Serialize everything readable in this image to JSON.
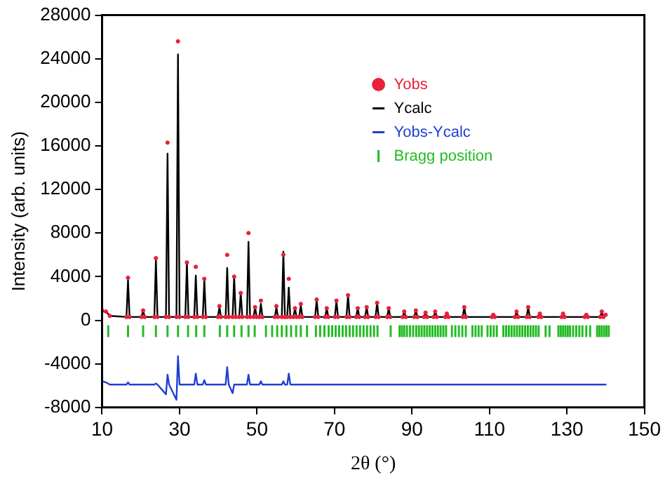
{
  "chart_data": {
    "type": "line",
    "xlabel": "2θ (°)",
    "ylabel": "Intensity (arb. units)",
    "xlim": [
      10,
      150
    ],
    "xticks": [
      10,
      30,
      50,
      70,
      90,
      110,
      130,
      150
    ],
    "ylim": [
      -8000,
      28000
    ],
    "yticks": [
      -8000,
      -4000,
      0,
      4000,
      8000,
      12000,
      16000,
      20000,
      24000,
      28000
    ],
    "grid": false,
    "legend": "top right",
    "x": [
      10,
      11,
      12,
      16.3,
      16.7,
      17.1,
      20.2,
      20.6,
      21,
      23.5,
      23.9,
      24.3,
      26.5,
      26.9,
      27.3,
      29.2,
      29.6,
      30,
      31.5,
      31.9,
      32.3,
      33.8,
      34.2,
      34.6,
      36,
      36.4,
      36.8,
      39.9,
      40.3,
      40.7,
      41.9,
      42.3,
      42.7,
      43.7,
      44.1,
      44.5,
      45.4,
      45.8,
      46.2,
      47.4,
      47.8,
      48.2,
      49.1,
      49.5,
      49.9,
      50.6,
      51,
      51.4,
      54.6,
      55,
      55.4,
      56.4,
      56.8,
      57.2,
      57.8,
      58.2,
      58.6,
      59.4,
      59.8,
      60.2,
      60.9,
      61.3,
      61.7,
      65,
      65.4,
      65.8,
      67.6,
      68,
      68.4,
      70.1,
      70.5,
      70.9,
      73.1,
      73.5,
      73.9,
      75.6,
      76,
      76.4,
      77.9,
      78.3,
      78.7,
      80.6,
      81,
      81.4,
      83.6,
      84,
      84.4,
      87.6,
      88,
      88.4,
      90.6,
      91,
      91.4,
      93.1,
      93.5,
      93.9,
      95.6,
      96,
      96.4,
      98.6,
      99,
      99.4,
      103.1,
      103.5,
      103.9,
      110.6,
      111,
      111.4,
      116.6,
      117,
      117.4,
      119.6,
      120,
      120.4,
      122.6,
      123,
      123.4,
      128.6,
      129,
      129.4,
      134.6,
      135,
      135.4,
      138.6,
      139,
      139.4,
      140
    ],
    "series": [
      {
        "name": "Yobs",
        "type": "scatter",
        "marker": "circle",
        "color": "#e8213a",
        "values": [
          900,
          800,
          400,
          300,
          3900,
          300,
          300,
          900,
          300,
          300,
          5700,
          300,
          300,
          16300,
          300,
          300,
          25600,
          300,
          300,
          5300,
          300,
          300,
          4900,
          300,
          300,
          3800,
          300,
          300,
          1300,
          300,
          300,
          6000,
          300,
          300,
          4000,
          300,
          300,
          2500,
          300,
          300,
          8000,
          300,
          300,
          1200,
          300,
          300,
          1800,
          300,
          300,
          1300,
          300,
          300,
          6000,
          300,
          300,
          3800,
          300,
          300,
          1100,
          300,
          300,
          1500,
          300,
          300,
          1900,
          300,
          300,
          1100,
          300,
          300,
          1800,
          300,
          300,
          2300,
          300,
          300,
          1100,
          300,
          300,
          1200,
          300,
          300,
          1600,
          300,
          300,
          1100,
          300,
          300,
          800,
          300,
          300,
          900,
          300,
          300,
          700,
          300,
          300,
          800,
          300,
          300,
          600,
          300,
          300,
          1200,
          300,
          300,
          500,
          300,
          300,
          800,
          300,
          300,
          1200,
          300,
          300,
          600,
          300,
          300,
          600,
          300,
          300,
          500,
          300,
          300,
          800,
          300,
          500
        ]
      },
      {
        "name": "Ycalc",
        "marker": "none",
        "color": "#000000",
        "values": [
          800,
          800,
          400,
          300,
          3700,
          300,
          300,
          900,
          300,
          300,
          5600,
          300,
          300,
          15300,
          300,
          300,
          24400,
          300,
          300,
          5300,
          300,
          300,
          4100,
          300,
          300,
          3700,
          300,
          300,
          1200,
          300,
          300,
          4800,
          300,
          300,
          4000,
          300,
          300,
          2500,
          300,
          300,
          7200,
          300,
          300,
          1200,
          300,
          300,
          1500,
          300,
          300,
          1200,
          300,
          300,
          6300,
          300,
          300,
          3000,
          300,
          300,
          1100,
          300,
          300,
          1400,
          300,
          300,
          1900,
          300,
          300,
          1100,
          300,
          300,
          1800,
          300,
          300,
          2300,
          300,
          300,
          1100,
          300,
          300,
          1200,
          300,
          300,
          1600,
          300,
          300,
          1100,
          300,
          300,
          800,
          300,
          300,
          900,
          300,
          300,
          700,
          300,
          300,
          800,
          300,
          300,
          600,
          300,
          300,
          1200,
          300,
          300,
          500,
          300,
          300,
          800,
          300,
          300,
          1200,
          300,
          300,
          600,
          300,
          300,
          600,
          300,
          300,
          500,
          300,
          300,
          800,
          300,
          500
        ]
      },
      {
        "name": "Yobs-Ycalc",
        "type": "line",
        "marker": "none",
        "color": "#1f3fd0",
        "values": [
          -5600,
          -5700,
          -5900,
          -5900,
          -5700,
          -5900,
          -5900,
          -5900,
          -5900,
          -5900,
          -5800,
          -5900,
          -6800,
          -5000,
          -5900,
          -7300,
          -3300,
          -5900,
          -5900,
          -5900,
          -5900,
          -5900,
          -4900,
          -5900,
          -5900,
          -5500,
          -5900,
          -5900,
          -5900,
          -5900,
          -5900,
          -4300,
          -5900,
          -6700,
          -5900,
          -5900,
          -5900,
          -5900,
          -5900,
          -5900,
          -5000,
          -5900,
          -5900,
          -5900,
          -5900,
          -5900,
          -5600,
          -5900,
          -5900,
          -5900,
          -5900,
          -5900,
          -5600,
          -5900,
          -5900,
          -4900,
          -5900,
          -5900,
          -5900,
          -5900,
          -5900,
          -5900,
          -5900,
          -5900,
          -5900,
          -5900,
          -5900,
          -5900,
          -5900,
          -5900,
          -5900,
          -5900,
          -5900,
          -5900,
          -5900,
          -5900,
          -5900,
          -5900,
          -5900,
          -5900,
          -5900,
          -5900,
          -5900,
          -5900,
          -5900,
          -5900,
          -5900,
          -5900,
          -5900,
          -5900,
          -5900,
          -5900,
          -5900,
          -5900,
          -5900,
          -5900,
          -5900,
          -5900,
          -5900,
          -5900,
          -5900,
          -5900,
          -5900,
          -5900,
          -5900,
          -5900,
          -5900,
          -5900,
          -5900,
          -5900,
          -5900,
          -5900,
          -5900,
          -5900,
          -5900,
          -5900,
          -5900,
          -5900,
          -5900,
          -5900,
          -5900,
          -5900,
          -5900,
          -5900,
          -5900,
          -5900,
          -5900
        ]
      },
      {
        "name": "Bragg position",
        "type": "bar",
        "color": "#22bb22",
        "base": [
          -1500,
          -1500,
          -1500,
          -1500,
          -1500,
          -1500,
          -1500,
          -1500,
          -1500,
          -1500,
          -1500,
          -1500,
          -1500,
          -1500,
          -1500,
          -1500,
          -1500,
          -1500,
          -1500,
          -1500,
          -1500,
          -1500,
          -1500,
          -1500,
          -1500,
          -1500,
          -1500,
          -1500,
          -1500,
          -1500,
          -1500,
          -1500,
          -1500,
          -1500,
          -1500,
          -1500,
          -1500,
          -1500,
          -1500,
          -1500,
          -1500,
          -1500,
          -1500,
          -1500,
          -1500,
          -1500,
          -1500,
          -1500,
          -1500,
          -1500,
          -1500,
          -1500,
          -1500,
          -1500,
          -1500,
          -1500,
          -1500,
          -1500,
          -1500,
          -1500,
          -1500,
          -1500,
          -1500,
          -1500,
          -1500,
          -1500,
          -1500,
          -1500,
          -1500,
          -1500,
          -1500,
          -1500,
          -1500,
          -1500,
          -1500,
          -1500,
          -1500,
          -1500,
          -1500,
          -1500,
          -1500,
          -1500,
          -1500,
          -1500,
          -1500,
          -1500,
          -1500,
          -1500,
          -1500,
          -1500,
          -1500,
          -1500,
          -1500,
          -1500,
          -1500,
          -1500,
          -1500,
          -1500,
          -1500,
          -1500,
          -1500,
          -1500,
          -1500,
          -1500,
          -1500,
          -1500,
          -1500,
          -1500
        ],
        "x": [
          11.6,
          16.7,
          20.6,
          23.9,
          26.9,
          29.6,
          32.2,
          34.3,
          36.4,
          40.4,
          42.3,
          44.1,
          46,
          47.8,
          49.4,
          52.3,
          53.9,
          55.2,
          56.4,
          57.6,
          58.8,
          60.1,
          61.3,
          62.9,
          65.2,
          66.3,
          67.4,
          68.5,
          69.4,
          70.3,
          71.2,
          72.1,
          73,
          73.9,
          74.8,
          75.7,
          76.6,
          77.5,
          78.4,
          79.3,
          80.2,
          81.1,
          84.5,
          86.8,
          87.4,
          88,
          88.7,
          89.5,
          90.3,
          91.1,
          91.8,
          92.5,
          93.2,
          93.9,
          94.6,
          95.3,
          96,
          96.7,
          97.4,
          98.1,
          98.8,
          100.3,
          101.2,
          102.1,
          103,
          103.9,
          105.6,
          106.4,
          107.2,
          108,
          109.5,
          110.3,
          111.1,
          111.9,
          113.6,
          114.3,
          115,
          115.7,
          116.4,
          117.1,
          117.8,
          118.5,
          119.2,
          119.9,
          120.6,
          121.3,
          122,
          122.7,
          124.5,
          125.5,
          127.8,
          128.4,
          129,
          129.6,
          130.2,
          130.8,
          131.6,
          132.4,
          133.2,
          134,
          135,
          136,
          137.8,
          138.4,
          139,
          139.6,
          140.2,
          140.8
        ],
        "values": [
          1000,
          1000,
          1000,
          1000,
          1000,
          1000,
          1000,
          1000,
          1000,
          1000,
          1000,
          1000,
          1000,
          1000,
          1000,
          1000,
          1000,
          1000,
          1000,
          1000,
          1000,
          1000,
          1000,
          1000,
          1000,
          1000,
          1000,
          1000,
          1000,
          1000,
          1000,
          1000,
          1000,
          1000,
          1000,
          1000,
          1000,
          1000,
          1000,
          1000,
          1000,
          1000,
          1000,
          1000,
          1000,
          1000,
          1000,
          1000,
          1000,
          1000,
          1000,
          1000,
          1000,
          1000,
          1000,
          1000,
          1000,
          1000,
          1000,
          1000,
          1000,
          1000,
          1000,
          1000,
          1000,
          1000,
          1000,
          1000,
          1000,
          1000,
          1000,
          1000,
          1000,
          1000,
          1000,
          1000,
          1000,
          1000,
          1000,
          1000,
          1000,
          1000,
          1000,
          1000,
          1000,
          1000,
          1000,
          1000,
          1000,
          1000,
          1000,
          1000,
          1000,
          1000,
          1000,
          1000,
          1000,
          1000,
          1000,
          1000,
          1000,
          1000,
          1000,
          1000,
          1000,
          1000,
          1000,
          1000
        ]
      }
    ]
  }
}
